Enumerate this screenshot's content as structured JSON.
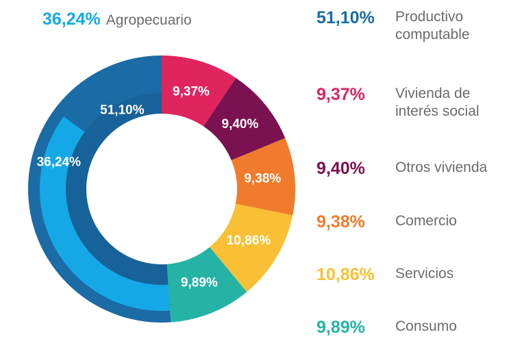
{
  "chart_data": {
    "type": "donut",
    "categories": [
      "Productivo computable",
      "Vivienda de interés social",
      "Otros vivienda",
      "Comercio",
      "Servicios",
      "Consumo"
    ],
    "values": [
      51.1,
      9.37,
      9.4,
      9.38,
      10.86,
      9.89
    ],
    "value_labels": [
      "51,10%",
      "9,37%",
      "9,40%",
      "9,38%",
      "10,86%",
      "9,89%"
    ],
    "colors": [
      "#1a6ba6",
      "#e0245e",
      "#7a1150",
      "#f07b2c",
      "#f9c035",
      "#25b3a6"
    ],
    "inner": {
      "name": "Agropecuario",
      "value": 36.24,
      "value_label": "36,24%",
      "color": "#14a9e6",
      "parent": 0
    }
  }
}
